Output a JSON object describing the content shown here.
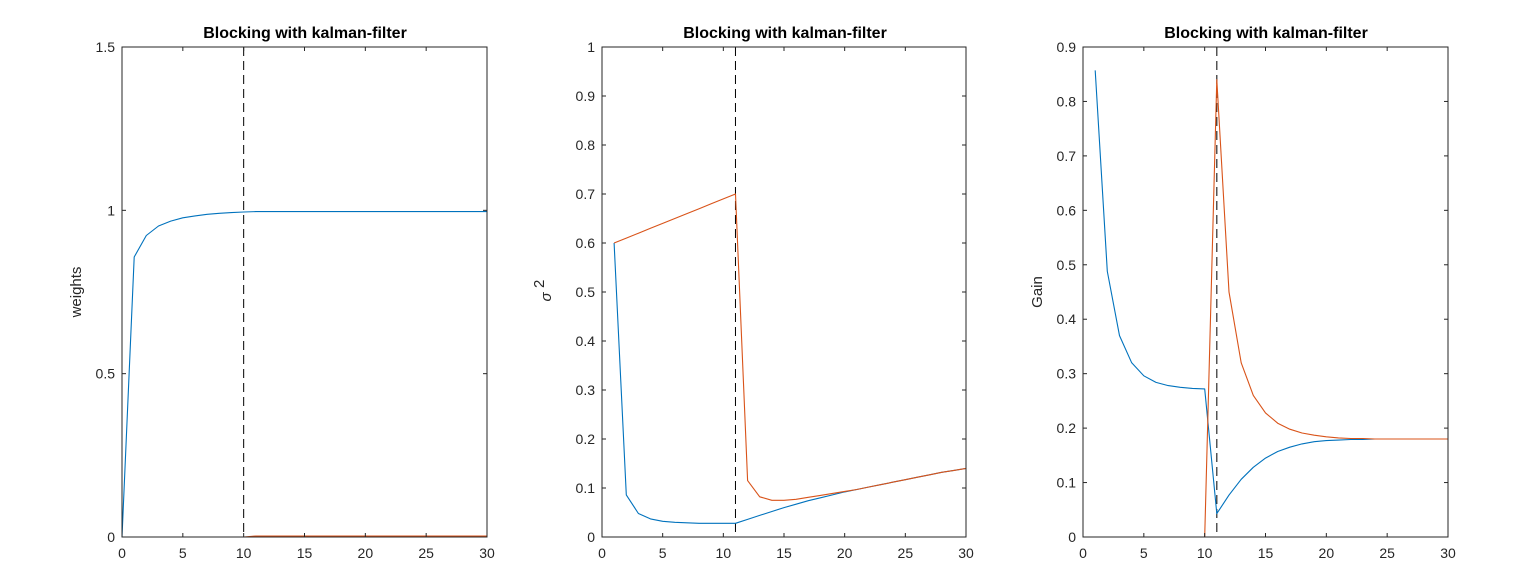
{
  "chart_data": [
    {
      "type": "line",
      "title": "Blocking with kalman-filter",
      "xlabel": "",
      "ylabel": "weights",
      "xlim": [
        0,
        30
      ],
      "ylim": [
        0,
        1.5
      ],
      "xticks": [
        "0",
        "5",
        "10",
        "15",
        "20",
        "25",
        "30"
      ],
      "yticks": [
        "0",
        "0.5",
        "1",
        "1.5"
      ],
      "vline_x": 10,
      "grid": false,
      "series": [
        {
          "color": "#0072BD",
          "x": [
            0,
            1,
            2,
            3,
            4,
            5,
            6,
            7,
            8,
            9,
            10,
            11,
            12,
            13,
            14,
            15,
            16,
            17,
            18,
            19,
            20,
            21,
            22,
            23,
            24,
            25,
            26,
            27,
            28,
            29,
            30
          ],
          "y": [
            0,
            0.857,
            0.923,
            0.952,
            0.967,
            0.977,
            0.983,
            0.988,
            0.991,
            0.993,
            0.995,
            0.996,
            0.996,
            0.996,
            0.996,
            0.996,
            0.996,
            0.996,
            0.996,
            0.996,
            0.996,
            0.996,
            0.996,
            0.996,
            0.996,
            0.996,
            0.996,
            0.996,
            0.996,
            0.996,
            0.996
          ]
        },
        {
          "color": "#D95319",
          "x": [
            0,
            1,
            2,
            3,
            4,
            5,
            6,
            7,
            8,
            9,
            10,
            11,
            12,
            13,
            14,
            15,
            16,
            17,
            18,
            19,
            20,
            21,
            22,
            23,
            24,
            25,
            26,
            27,
            28,
            29,
            30
          ],
          "y": [
            0,
            0,
            0,
            0,
            0,
            0,
            0,
            0,
            0,
            0,
            0,
            0.003,
            0.003,
            0.003,
            0.003,
            0.003,
            0.003,
            0.003,
            0.003,
            0.003,
            0.003,
            0.003,
            0.003,
            0.003,
            0.003,
            0.003,
            0.003,
            0.003,
            0.003,
            0.003,
            0.003
          ]
        }
      ]
    },
    {
      "type": "line",
      "title": "Blocking with kalman-filter",
      "xlabel": "",
      "ylabel": "σ",
      "ylabel_sup": "2",
      "xlim": [
        0,
        30
      ],
      "ylim": [
        0,
        1
      ],
      "xticks": [
        "0",
        "5",
        "10",
        "15",
        "20",
        "25",
        "30"
      ],
      "yticks": [
        "0",
        "0.1",
        "0.2",
        "0.3",
        "0.4",
        "0.5",
        "0.6",
        "0.7",
        "0.8",
        "0.9",
        "1"
      ],
      "vline_x": 11,
      "grid": false,
      "series": [
        {
          "color": "#0072BD",
          "x": [
            1,
            2,
            3,
            4,
            5,
            6,
            7,
            8,
            9,
            10,
            11,
            12,
            13,
            14,
            15,
            16,
            17,
            18,
            19,
            20,
            21,
            22,
            23,
            24,
            25,
            26,
            27,
            28,
            29,
            30
          ],
          "y": [
            0.6,
            0.086,
            0.048,
            0.037,
            0.032,
            0.03,
            0.029,
            0.028,
            0.028,
            0.028,
            0.028,
            0.036,
            0.044,
            0.052,
            0.06,
            0.067,
            0.074,
            0.08,
            0.086,
            0.092,
            0.097,
            0.102,
            0.107,
            0.112,
            0.117,
            0.122,
            0.127,
            0.132,
            0.136,
            0.14
          ]
        },
        {
          "color": "#D95319",
          "x": [
            1,
            2,
            3,
            4,
            5,
            6,
            7,
            8,
            9,
            10,
            11,
            12,
            13,
            14,
            15,
            16,
            17,
            18,
            19,
            20,
            21,
            22,
            23,
            24,
            25,
            26,
            27,
            28,
            29,
            30
          ],
          "y": [
            0.6,
            0.61,
            0.62,
            0.63,
            0.64,
            0.65,
            0.66,
            0.67,
            0.68,
            0.69,
            0.7,
            0.115,
            0.082,
            0.075,
            0.075,
            0.077,
            0.081,
            0.085,
            0.089,
            0.093,
            0.097,
            0.102,
            0.107,
            0.112,
            0.117,
            0.122,
            0.127,
            0.132,
            0.136,
            0.14
          ]
        }
      ]
    },
    {
      "type": "line",
      "title": "Blocking with kalman-filter",
      "xlabel": "",
      "ylabel": "Gain",
      "xlim": [
        0,
        30
      ],
      "ylim": [
        0,
        0.9
      ],
      "xticks": [
        "0",
        "5",
        "10",
        "15",
        "20",
        "25",
        "30"
      ],
      "yticks": [
        "0",
        "0.1",
        "0.2",
        "0.3",
        "0.4",
        "0.5",
        "0.6",
        "0.7",
        "0.8",
        "0.9"
      ],
      "vline_x": 11,
      "grid": false,
      "series": [
        {
          "color": "#0072BD",
          "x": [
            1,
            2,
            3,
            4,
            5,
            6,
            7,
            8,
            9,
            10,
            11,
            12,
            13,
            14,
            15,
            16,
            17,
            18,
            19,
            20,
            21,
            22,
            23,
            24,
            25,
            26,
            27,
            28,
            29,
            30
          ],
          "y": [
            0.857,
            0.488,
            0.37,
            0.32,
            0.296,
            0.284,
            0.278,
            0.275,
            0.273,
            0.272,
            0.043,
            0.077,
            0.106,
            0.128,
            0.145,
            0.157,
            0.165,
            0.171,
            0.175,
            0.177,
            0.178,
            0.179,
            0.179,
            0.18,
            0.18,
            0.18,
            0.18,
            0.18,
            0.18,
            0.18
          ]
        },
        {
          "color": "#D95319",
          "x": [
            1,
            2,
            3,
            4,
            5,
            6,
            7,
            8,
            9,
            10,
            11,
            12,
            13,
            14,
            15,
            16,
            17,
            18,
            19,
            20,
            21,
            22,
            23,
            24,
            25,
            26,
            27,
            28,
            29,
            30
          ],
          "y": [
            0,
            0,
            0,
            0,
            0,
            0,
            0,
            0,
            0,
            0,
            0.84,
            0.45,
            0.32,
            0.26,
            0.228,
            0.209,
            0.198,
            0.191,
            0.187,
            0.184,
            0.182,
            0.181,
            0.181,
            0.18,
            0.18,
            0.18,
            0.18,
            0.18,
            0.18,
            0.18
          ]
        }
      ]
    }
  ]
}
